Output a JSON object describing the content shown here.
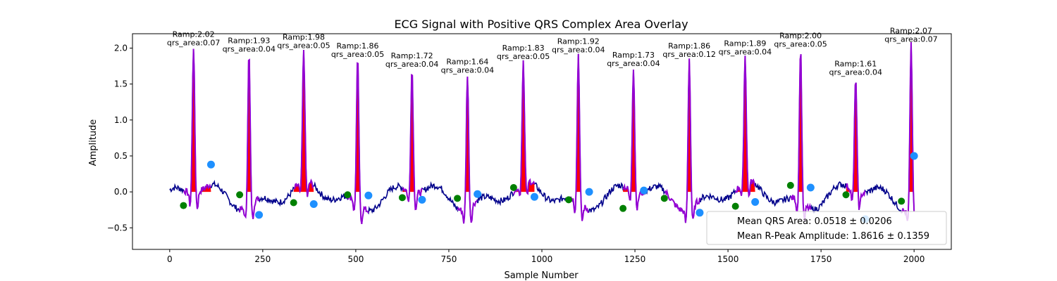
{
  "chart_data": {
    "type": "line",
    "title": "ECG Signal with Positive QRS Complex Area Overlay",
    "xlabel": "Sample Number",
    "ylabel": "Amplitude",
    "xlim": [
      -100,
      2100
    ],
    "ylim": [
      -0.8,
      2.2
    ],
    "xticks": [
      0,
      250,
      500,
      750,
      1000,
      1250,
      1500,
      1750,
      2000
    ],
    "yticks": [
      -0.5,
      0.0,
      0.5,
      1.0,
      1.5,
      2.0
    ],
    "xtick_labels": [
      "0",
      "250",
      "500",
      "750",
      "1000",
      "1250",
      "1500",
      "1750",
      "2000"
    ],
    "ytick_labels": [
      "−0.5",
      "0.0",
      "0.5",
      "1.0",
      "1.5",
      "2.0"
    ],
    "grid": false,
    "colors": {
      "signal": "#00008b",
      "qrs_segment": "#9400d3",
      "qrs_fill": "#ff0000",
      "onset_marker": "#008000",
      "offset_marker": "#1e90ff"
    },
    "beats": [
      {
        "onset": 37,
        "onset_y": -0.19,
        "peak": 64,
        "r_amp": 2.02,
        "offset": 111,
        "offset_y": 0.38,
        "ramp_label": "Ramp:2.02",
        "area_label": "qrs_area:0.07"
      },
      {
        "onset": 188,
        "onset_y": -0.04,
        "peak": 213,
        "r_amp": 1.93,
        "offset": 240,
        "offset_y": -0.32,
        "ramp_label": "Ramp:1.93",
        "area_label": "qrs_area:0.04"
      },
      {
        "onset": 333,
        "onset_y": -0.15,
        "peak": 360,
        "r_amp": 1.98,
        "offset": 387,
        "offset_y": -0.17,
        "ramp_label": "Ramp:1.98",
        "area_label": "qrs_area:0.05"
      },
      {
        "onset": 478,
        "onset_y": -0.04,
        "peak": 505,
        "r_amp": 1.86,
        "offset": 534,
        "offset_y": -0.05,
        "ramp_label": "Ramp:1.86",
        "area_label": "qrs_area:0.05"
      },
      {
        "onset": 625,
        "onset_y": -0.08,
        "peak": 651,
        "r_amp": 1.72,
        "offset": 678,
        "offset_y": -0.11,
        "ramp_label": "Ramp:1.72",
        "area_label": "qrs_area:0.04"
      },
      {
        "onset": 773,
        "onset_y": -0.09,
        "peak": 800,
        "r_amp": 1.64,
        "offset": 827,
        "offset_y": -0.03,
        "ramp_label": "Ramp:1.64",
        "area_label": "qrs_area:0.04"
      },
      {
        "onset": 924,
        "onset_y": 0.06,
        "peak": 950,
        "r_amp": 1.83,
        "offset": 980,
        "offset_y": -0.07,
        "ramp_label": "Ramp:1.83",
        "area_label": "qrs_area:0.05"
      },
      {
        "onset": 1072,
        "onset_y": -0.11,
        "peak": 1098,
        "r_amp": 1.92,
        "offset": 1127,
        "offset_y": 0.0,
        "ramp_label": "Ramp:1.92",
        "area_label": "qrs_area:0.04"
      },
      {
        "onset": 1218,
        "onset_y": -0.23,
        "peak": 1246,
        "r_amp": 1.73,
        "offset": 1274,
        "offset_y": 0.02,
        "ramp_label": "Ramp:1.73",
        "area_label": "qrs_area:0.04"
      },
      {
        "onset": 1329,
        "onset_y": -0.09,
        "peak": 1396,
        "r_amp": 1.86,
        "offset": 1424,
        "offset_y": -0.29,
        "ramp_label": "Ramp:1.86",
        "area_label": "qrs_area:0.12"
      },
      {
        "onset": 1520,
        "onset_y": -0.2,
        "peak": 1546,
        "r_amp": 1.89,
        "offset": 1573,
        "offset_y": -0.14,
        "ramp_label": "Ramp:1.89",
        "area_label": "qrs_area:0.04"
      },
      {
        "onset": 1668,
        "onset_y": 0.09,
        "peak": 1695,
        "r_amp": 2.0,
        "offset": 1722,
        "offset_y": 0.06,
        "ramp_label": "Ramp:2.00",
        "area_label": "qrs_area:0.05"
      },
      {
        "onset": 1817,
        "onset_y": -0.04,
        "peak": 1843,
        "r_amp": 1.61,
        "offset": 1869,
        "offset_y": -0.38,
        "ramp_label": "Ramp:1.61",
        "area_label": "qrs_area:0.04"
      },
      {
        "onset": 1966,
        "onset_y": -0.13,
        "peak": 1992,
        "r_amp": 2.07,
        "offset": 2000,
        "offset_y": 0.5,
        "ramp_label": "Ramp:2.07",
        "area_label": "qrs_area:0.07"
      }
    ],
    "legend": {
      "location": "lower-right",
      "entries": [
        "Mean QRS Area: 0.0518 ± 0.0206",
        "Mean R-Peak Amplitude: 1.8616 ± 0.1359"
      ]
    }
  }
}
